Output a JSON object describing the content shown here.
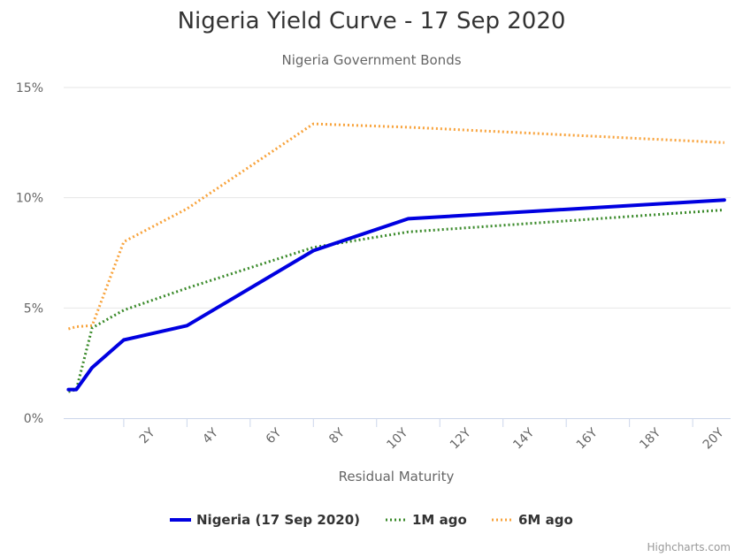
{
  "chart_data": {
    "type": "line",
    "title": "Nigeria Yield Curve - 17 Sep 2020",
    "subtitle": "Nigeria Government Bonds",
    "xlabel": "Residual Maturity",
    "ylabel": "",
    "xlim": [
      -0.9,
      20.2
    ],
    "ylim": [
      0,
      15
    ],
    "x_ticks": [
      2,
      4,
      6,
      8,
      10,
      12,
      14,
      16,
      18,
      20
    ],
    "x_tick_labels": [
      "2Y",
      "4Y",
      "6Y",
      "8Y",
      "10Y",
      "12Y",
      "14Y",
      "16Y",
      "18Y",
      "20Y"
    ],
    "y_ticks": [
      0,
      5,
      10,
      15
    ],
    "y_tick_labels": [
      "0%",
      "5%",
      "10%",
      "15%"
    ],
    "grid": true,
    "legend_position": "bottom",
    "series": [
      {
        "name": "Nigeria (17 Sep 2020)",
        "color": "#0000e0",
        "style": "solid",
        "x": [
          -0.75,
          -0.5,
          0.0,
          1.0,
          3.0,
          7.0,
          10.0,
          20.0
        ],
        "y": [
          1.3,
          1.3,
          2.3,
          3.55,
          4.2,
          7.6,
          9.05,
          9.9
        ]
      },
      {
        "name": "1M ago",
        "color": "#3a8a2a",
        "style": "dotted",
        "x": [
          -0.75,
          -0.5,
          0.0,
          1.0,
          3.0,
          7.0,
          10.0,
          20.0
        ],
        "y": [
          1.2,
          1.3,
          4.1,
          4.9,
          5.9,
          7.75,
          8.45,
          9.45
        ]
      },
      {
        "name": "6M ago",
        "color": "#f8a33c",
        "style": "dotted",
        "x": [
          -0.75,
          -0.5,
          0.0,
          1.0,
          3.0,
          7.0,
          10.0,
          20.0
        ],
        "y": [
          4.05,
          4.15,
          4.2,
          8.0,
          9.5,
          13.35,
          13.2,
          12.5
        ]
      }
    ]
  },
  "credits": "Highcharts.com"
}
